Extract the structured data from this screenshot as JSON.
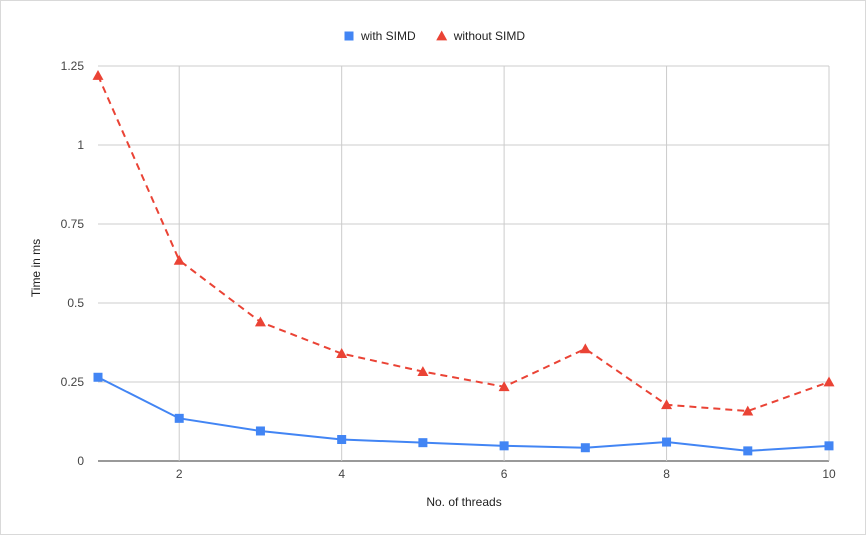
{
  "chart_data": {
    "type": "line",
    "title": "",
    "xlabel": "No. of threads",
    "ylabel": "Time in ms",
    "x": [
      1,
      2,
      3,
      4,
      5,
      6,
      7,
      8,
      9,
      10
    ],
    "xlim": [
      1,
      10
    ],
    "xticks": [
      2,
      4,
      6,
      8,
      10
    ],
    "xtick_labels": [
      "2",
      "4",
      "6",
      "8",
      "10"
    ],
    "ylim": [
      0,
      1.25
    ],
    "yticks": [
      0,
      0.25,
      0.5,
      0.75,
      1,
      1.25
    ],
    "ytick_labels": [
      "0",
      "0.25",
      "0.5",
      "0.75",
      "1",
      "1.25"
    ],
    "grid": true,
    "legend_position": "top",
    "series": [
      {
        "name": "with SIMD",
        "color": "#4285f4",
        "marker": "square",
        "line_style": "solid",
        "values": [
          0.265,
          0.135,
          0.095,
          0.068,
          0.058,
          0.048,
          0.042,
          0.06,
          0.032,
          0.048
        ]
      },
      {
        "name": "without SIMD",
        "color": "#ea4335",
        "marker": "triangle",
        "line_style": "dashed",
        "values": [
          1.22,
          0.635,
          0.44,
          0.34,
          0.283,
          0.235,
          0.355,
          0.178,
          0.158,
          0.25
        ]
      }
    ]
  }
}
